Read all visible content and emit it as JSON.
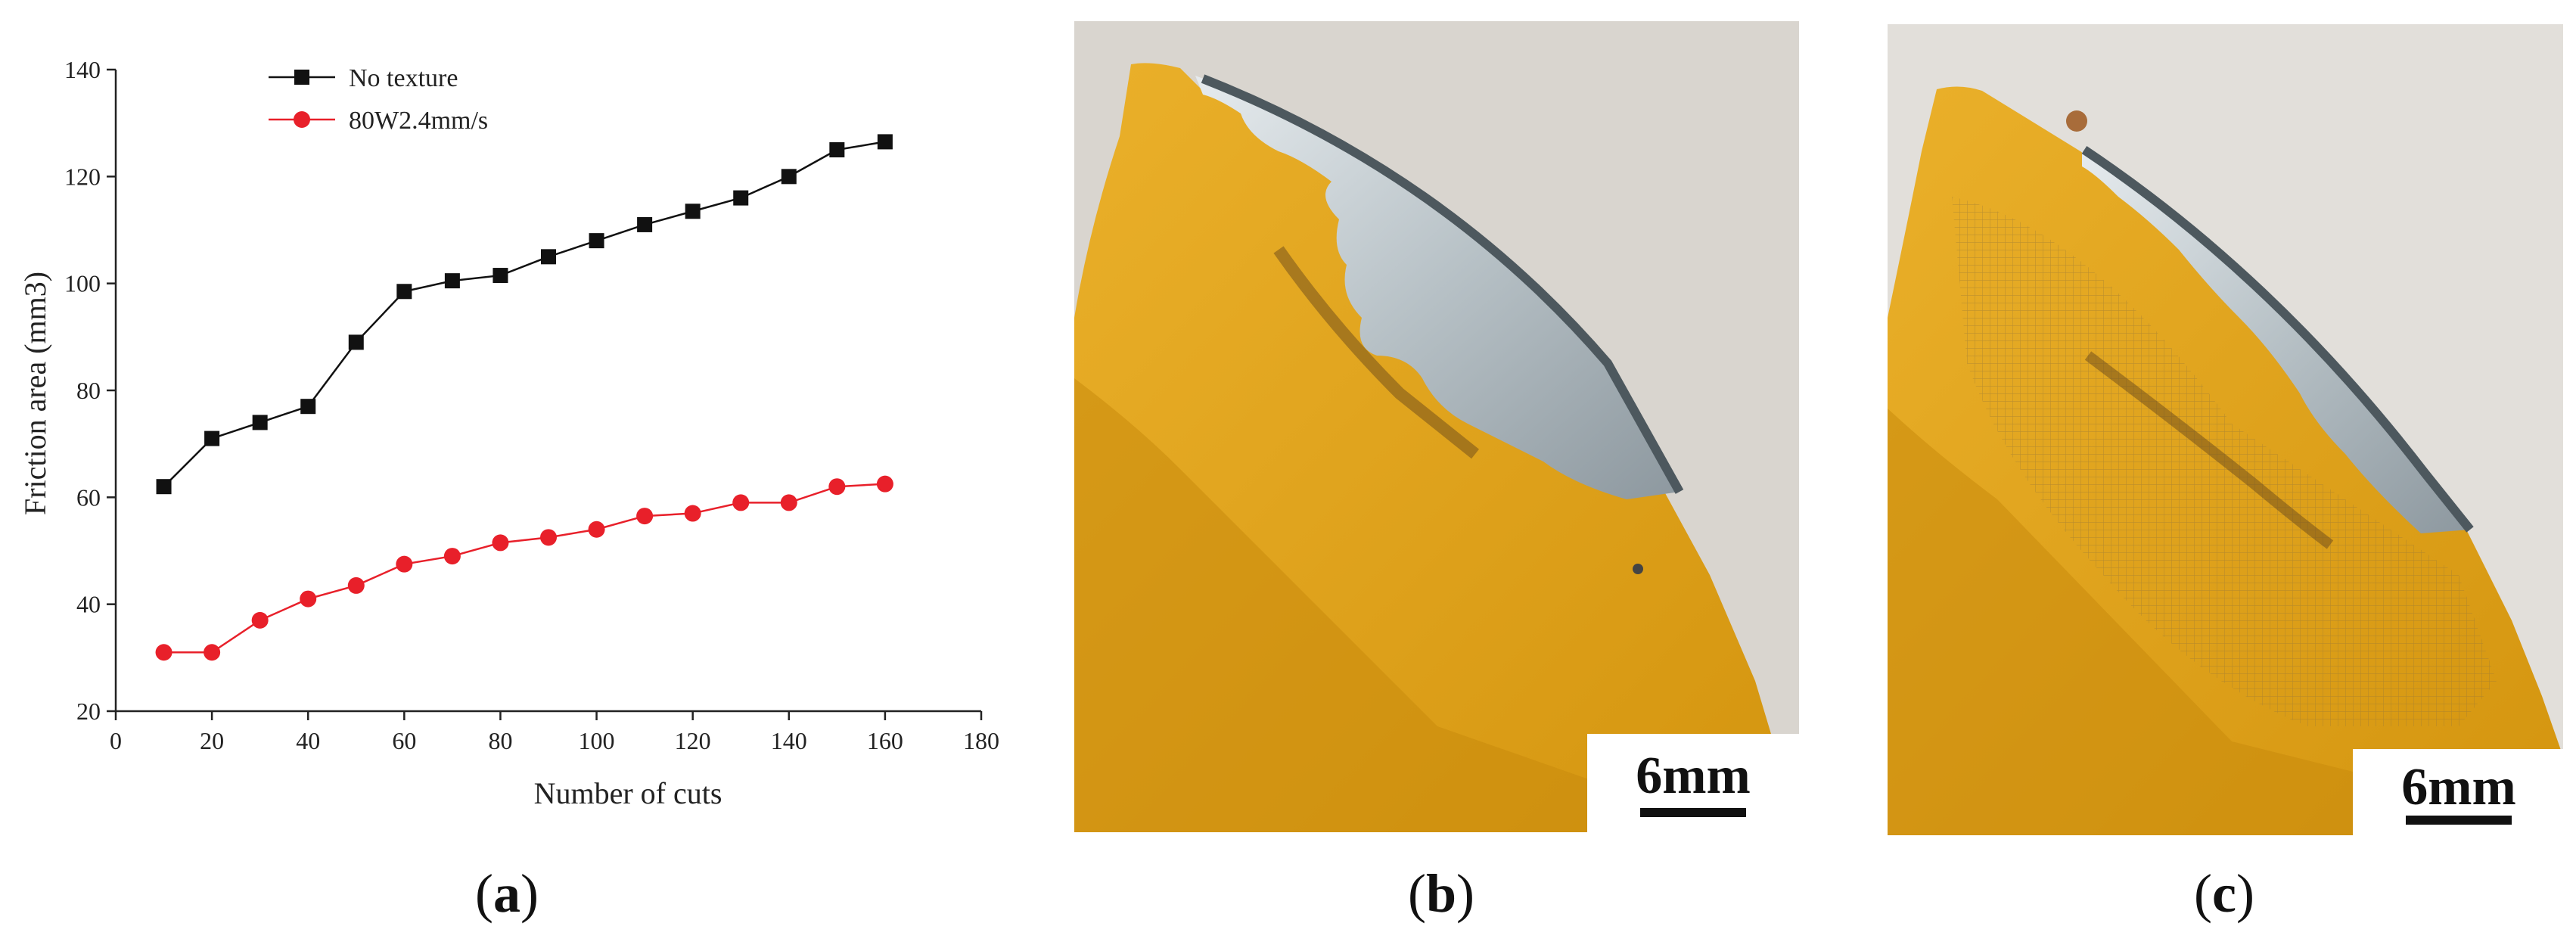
{
  "panels": {
    "a": {
      "caption_open": "(",
      "caption_letter": "a",
      "caption_close": ")"
    },
    "b": {
      "caption_open": "(",
      "caption_letter": "b",
      "caption_close": ")",
      "scale_label": "6mm"
    },
    "c": {
      "caption_open": "(",
      "caption_letter": "c",
      "caption_close": ")",
      "scale_label": "6mm"
    }
  },
  "colors": {
    "series_black": "#111111",
    "series_red": "#e8202a",
    "blade_yellow": "#e0a21a",
    "steel": "#b8c2c7",
    "background_photo": "#d8d5d0"
  },
  "chart_data": {
    "type": "line",
    "title": "",
    "xlabel": "Number of cuts",
    "ylabel": "Friction area (mm3)",
    "xlim": [
      0,
      180
    ],
    "ylim": [
      20,
      140
    ],
    "xticks": [
      0,
      20,
      40,
      60,
      80,
      100,
      120,
      140,
      160,
      180
    ],
    "yticks": [
      20,
      40,
      60,
      80,
      100,
      120,
      140
    ],
    "grid": false,
    "legend_position": "top-left",
    "x": [
      10,
      20,
      30,
      40,
      50,
      60,
      70,
      80,
      90,
      100,
      110,
      120,
      130,
      140,
      150,
      160
    ],
    "series": [
      {
        "name": "No texture",
        "color": "#111111",
        "marker": "square",
        "values": [
          62,
          71,
          74,
          77,
          89,
          98.5,
          100.5,
          101.5,
          105,
          108,
          111,
          113.5,
          116,
          120,
          125,
          126.5
        ]
      },
      {
        "name": "80W2.4mm/s",
        "color": "#e8202a",
        "marker": "circle",
        "values": [
          31,
          31,
          37,
          41,
          43.5,
          47.5,
          49,
          51.5,
          52.5,
          54,
          56.5,
          57,
          59,
          59,
          62,
          62.5
        ]
      }
    ]
  }
}
